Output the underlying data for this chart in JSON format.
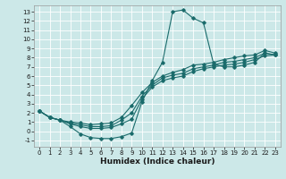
{
  "title": "",
  "xlabel": "Humidex (Indice chaleur)",
  "bg_color": "#cce8e8",
  "grid_color": "#ffffff",
  "line_color": "#1a6b6b",
  "xlim": [
    -0.5,
    23.5
  ],
  "ylim": [
    -1.7,
    13.7
  ],
  "xticks": [
    0,
    1,
    2,
    3,
    4,
    5,
    6,
    7,
    8,
    9,
    10,
    11,
    12,
    13,
    14,
    15,
    16,
    17,
    18,
    19,
    20,
    21,
    22,
    23
  ],
  "yticks": [
    -1,
    0,
    1,
    2,
    3,
    4,
    5,
    6,
    7,
    8,
    9,
    10,
    11,
    12,
    13
  ],
  "line1_x": [
    0,
    1,
    2,
    3,
    4,
    5,
    6,
    7,
    8,
    9,
    10,
    11,
    12,
    13,
    14,
    15,
    16,
    17,
    18,
    19,
    20,
    21,
    22,
    23
  ],
  "line1_y": [
    2.2,
    1.5,
    1.2,
    0.5,
    -0.3,
    -0.7,
    -0.8,
    -0.8,
    -0.6,
    -0.2,
    3.2,
    5.5,
    7.5,
    13.0,
    13.2,
    12.3,
    11.8,
    7.3,
    7.0,
    7.0,
    7.2,
    7.5,
    8.5,
    8.3
  ],
  "line2_x": [
    0,
    1,
    2,
    3,
    4,
    5,
    6,
    7,
    8,
    9,
    10,
    11,
    12,
    13,
    14,
    15,
    16,
    17,
    18,
    19,
    20,
    21,
    22,
    23
  ],
  "line2_y": [
    2.2,
    1.5,
    1.2,
    0.8,
    0.5,
    0.3,
    0.3,
    0.4,
    0.8,
    1.3,
    3.5,
    4.8,
    5.5,
    5.8,
    6.0,
    6.5,
    6.8,
    7.0,
    7.2,
    7.3,
    7.5,
    7.8,
    8.2,
    8.3
  ],
  "line3_x": [
    0,
    1,
    2,
    3,
    4,
    5,
    6,
    7,
    8,
    9,
    10,
    11,
    12,
    13,
    14,
    15,
    16,
    17,
    18,
    19,
    20,
    21,
    22,
    23
  ],
  "line3_y": [
    2.2,
    1.5,
    1.2,
    0.9,
    0.7,
    0.5,
    0.5,
    0.6,
    1.2,
    2.0,
    3.8,
    5.0,
    5.8,
    6.1,
    6.3,
    6.8,
    7.0,
    7.2,
    7.5,
    7.6,
    7.8,
    8.0,
    8.5,
    8.3
  ],
  "line4_x": [
    0,
    1,
    2,
    3,
    4,
    5,
    6,
    7,
    8,
    9,
    10,
    11,
    12,
    13,
    14,
    15,
    16,
    17,
    18,
    19,
    20,
    21,
    22,
    23
  ],
  "line4_y": [
    2.2,
    1.5,
    1.2,
    1.0,
    0.9,
    0.7,
    0.8,
    0.9,
    1.5,
    2.8,
    4.2,
    5.3,
    6.0,
    6.4,
    6.7,
    7.2,
    7.3,
    7.5,
    7.8,
    8.0,
    8.2,
    8.3,
    8.8,
    8.5
  ],
  "marker": "D",
  "markersize": 1.8,
  "linewidth": 0.8,
  "tick_fontsize": 5.0,
  "xlabel_fontsize": 6.5
}
